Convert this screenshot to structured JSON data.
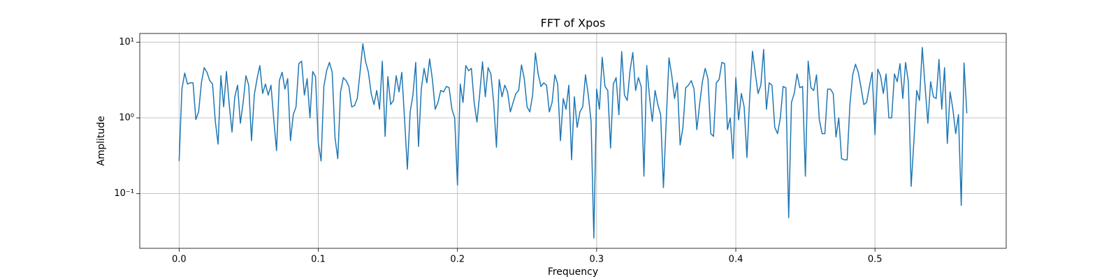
{
  "chart_data": {
    "type": "line",
    "title": "FFT of Xpos",
    "x_label": "Frequency",
    "y_label": "Amplitude",
    "log_y": true,
    "grid": true,
    "xlim": [
      -0.0283,
      0.5943
    ],
    "ylim": [
      0.019,
      13
    ],
    "xticks": [
      {
        "value": 0,
        "label": "0.0"
      },
      0.1,
      0.2,
      0.3,
      0.4,
      0.5
    ],
    "yticks": [
      {
        "value": 0.1,
        "label": "10⁻¹"
      },
      {
        "value": 1,
        "label": "10⁰"
      },
      {
        "value": 10,
        "label": "10¹"
      }
    ],
    "x": [
      0,
      0.002,
      0.004,
      0.006,
      0.008,
      0.01,
      0.012,
      0.014,
      0.016,
      0.018,
      0.02,
      0.022,
      0.024,
      0.026,
      0.028,
      0.03,
      0.032,
      0.034,
      0.036,
      0.038,
      0.04,
      0.042,
      0.044,
      0.046,
      0.048,
      0.05,
      0.052,
      0.054,
      0.056,
      0.058,
      0.06,
      0.062,
      0.064,
      0.066,
      0.068,
      0.07,
      0.072,
      0.074,
      0.076,
      0.078,
      0.08,
      0.082,
      0.084,
      0.086,
      0.088,
      0.09,
      0.092,
      0.094,
      0.096,
      0.098,
      0.1,
      0.102,
      0.104,
      0.106,
      0.108,
      0.11,
      0.112,
      0.114,
      0.116,
      0.118,
      0.12,
      0.122,
      0.124,
      0.126,
      0.128,
      0.13,
      0.132,
      0.134,
      0.136,
      0.138,
      0.14,
      0.142,
      0.144,
      0.146,
      0.148,
      0.15,
      0.152,
      0.154,
      0.156,
      0.158,
      0.16,
      0.162,
      0.164,
      0.166,
      0.168,
      0.17,
      0.172,
      0.174,
      0.176,
      0.178,
      0.18,
      0.182,
      0.184,
      0.186,
      0.188,
      0.19,
      0.192,
      0.194,
      0.196,
      0.198,
      0.2,
      0.202,
      0.204,
      0.206,
      0.208,
      0.21,
      0.212,
      0.214,
      0.216,
      0.218,
      0.22,
      0.222,
      0.224,
      0.226,
      0.228,
      0.23,
      0.232,
      0.234,
      0.236,
      0.238,
      0.24,
      0.242,
      0.244,
      0.246,
      0.248,
      0.25,
      0.252,
      0.254,
      0.256,
      0.258,
      0.26,
      0.262,
      0.264,
      0.266,
      0.268,
      0.27,
      0.272,
      0.274,
      0.276,
      0.278,
      0.28,
      0.282,
      0.284,
      0.286,
      0.288,
      0.29,
      0.292,
      0.294,
      0.296,
      0.298,
      0.3,
      0.302,
      0.304,
      0.306,
      0.308,
      0.31,
      0.312,
      0.314,
      0.316,
      0.318,
      0.32,
      0.322,
      0.324,
      0.326,
      0.328,
      0.33,
      0.332,
      0.334,
      0.336,
      0.338,
      0.34,
      0.342,
      0.344,
      0.346,
      0.348,
      0.35,
      0.352,
      0.354,
      0.356,
      0.358,
      0.36,
      0.362,
      0.364,
      0.366,
      0.368,
      0.37,
      0.372,
      0.374,
      0.376,
      0.378,
      0.38,
      0.382,
      0.384,
      0.386,
      0.388,
      0.39,
      0.392,
      0.394,
      0.396,
      0.398,
      0.4,
      0.402,
      0.404,
      0.406,
      0.408,
      0.41,
      0.412,
      0.414,
      0.416,
      0.418,
      0.42,
      0.422,
      0.424,
      0.426,
      0.428,
      0.43,
      0.432,
      0.434,
      0.436,
      0.438,
      0.44,
      0.442,
      0.444,
      0.446,
      0.448,
      0.45,
      0.452,
      0.454,
      0.456,
      0.458,
      0.46,
      0.462,
      0.464,
      0.466,
      0.468,
      0.47,
      0.472,
      0.474,
      0.476,
      0.478,
      0.48,
      0.482,
      0.484,
      0.486,
      0.488,
      0.49,
      0.492,
      0.494,
      0.496,
      0.498,
      0.5,
      0.502,
      0.504,
      0.506,
      0.508,
      0.51,
      0.512,
      0.514,
      0.516,
      0.518,
      0.52,
      0.522,
      0.524,
      0.526,
      0.528,
      0.53,
      0.532,
      0.534,
      0.536,
      0.538,
      0.54,
      0.542,
      0.544,
      0.546,
      0.548,
      0.55,
      0.552,
      0.554,
      0.556,
      0.558,
      0.56,
      0.562,
      0.564,
      0.566
    ],
    "series": [
      {
        "name": "Xpos",
        "color": "#1f77b4",
        "values": [
          0.27,
          2.4,
          3.9,
          2.8,
          2.9,
          2.9,
          0.95,
          1.2,
          2.9,
          4.6,
          4.0,
          3.1,
          2.8,
          0.9,
          0.45,
          3.6,
          1.4,
          4.1,
          1.5,
          0.65,
          1.9,
          2.7,
          0.85,
          1.6,
          3.6,
          2.7,
          0.5,
          2.0,
          3.3,
          4.9,
          2.1,
          2.8,
          2.0,
          2.7,
          0.95,
          0.37,
          3.1,
          4.0,
          2.4,
          3.3,
          0.5,
          1.1,
          1.4,
          5.2,
          5.6,
          2.0,
          3.3,
          1.0,
          4.1,
          3.5,
          0.47,
          0.27,
          2.6,
          4.2,
          5.4,
          4.0,
          0.55,
          0.29,
          2.2,
          3.4,
          3.1,
          2.6,
          1.4,
          1.45,
          1.8,
          4.0,
          9.5,
          5.5,
          4.0,
          2.1,
          1.5,
          2.3,
          1.3,
          5.6,
          0.57,
          3.5,
          1.5,
          1.7,
          3.6,
          2.2,
          4.0,
          0.95,
          0.21,
          1.2,
          2.0,
          5.4,
          0.42,
          2.4,
          4.5,
          2.9,
          6.0,
          3.2,
          1.3,
          1.6,
          2.3,
          2.2,
          2.6,
          2.5,
          1.3,
          1.0,
          0.13,
          2.8,
          1.6,
          4.9,
          4.2,
          4.5,
          1.6,
          0.88,
          2.1,
          5.5,
          1.9,
          4.6,
          3.8,
          1.6,
          0.41,
          3.2,
          1.9,
          2.7,
          2.2,
          1.2,
          1.6,
          2.1,
          2.3,
          5.0,
          3.3,
          1.4,
          1.2,
          2.0,
          7.2,
          3.8,
          2.6,
          2.9,
          2.7,
          1.2,
          1.6,
          3.7,
          2.8,
          0.5,
          1.8,
          1.3,
          2.7,
          0.28,
          1.9,
          0.75,
          1.2,
          1.4,
          3.7,
          2.0,
          0.9,
          0.026,
          2.4,
          1.3,
          6.3,
          2.6,
          2.3,
          0.4,
          2.8,
          3.4,
          1.1,
          7.5,
          2.0,
          1.7,
          4.2,
          7.3,
          2.3,
          3.4,
          2.6,
          0.17,
          4.9,
          1.9,
          0.9,
          2.3,
          1.5,
          1.1,
          0.12,
          0.9,
          6.2,
          3.6,
          1.8,
          2.9,
          0.44,
          0.75,
          2.5,
          2.7,
          3.1,
          2.4,
          0.7,
          1.5,
          3.0,
          4.5,
          3.3,
          0.62,
          0.57,
          2.9,
          3.2,
          5.4,
          5.2,
          0.7,
          1.0,
          0.29,
          3.4,
          0.94,
          2.1,
          1.4,
          0.3,
          1.9,
          7.6,
          3.9,
          2.1,
          2.7,
          8.0,
          1.3,
          2.9,
          2.7,
          0.75,
          0.62,
          1.0,
          2.6,
          2.5,
          0.048,
          1.6,
          2.1,
          3.8,
          2.5,
          2.6,
          0.17,
          5.6,
          2.5,
          2.3,
          3.7,
          0.95,
          0.62,
          0.62,
          2.4,
          2.4,
          2.1,
          0.56,
          1.0,
          0.29,
          0.28,
          0.28,
          1.5,
          3.7,
          5.1,
          4.0,
          2.5,
          1.5,
          1.6,
          2.6,
          4.0,
          0.6,
          4.4,
          3.6,
          2.1,
          3.8,
          1.0,
          1.0,
          3.8,
          3.0,
          5.2,
          1.8,
          5.4,
          3.0,
          0.125,
          0.5,
          2.3,
          1.7,
          8.5,
          2.6,
          0.85,
          3.0,
          1.9,
          1.8,
          5.9,
          1.3,
          4.6,
          0.46,
          2.2,
          1.3,
          0.62,
          1.1,
          0.07,
          5.3,
          1.15
        ]
      }
    ]
  }
}
